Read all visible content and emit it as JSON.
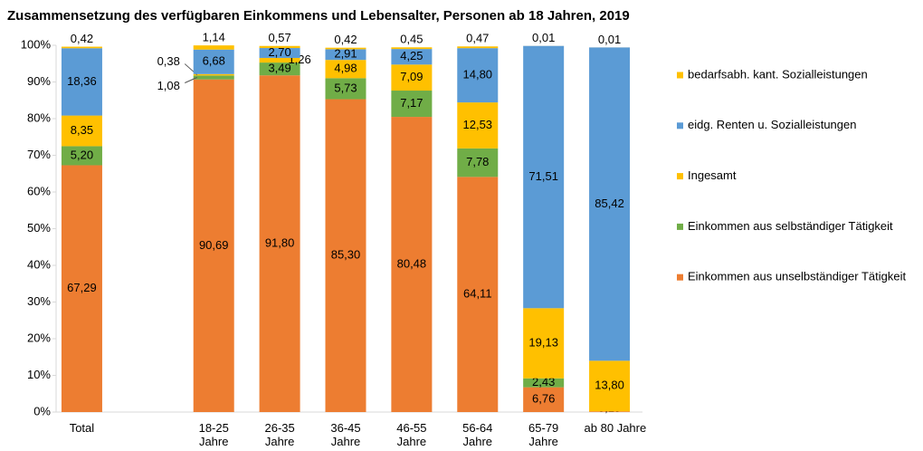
{
  "chart_data": {
    "type": "stacked_bar",
    "title": "Zusammensetzung des verfügbaren Einkommens und Lebensalter, Personen ab 18 Jahren, 2019",
    "categories": [
      "Total",
      null,
      "18-25 Jahre",
      "26-35 Jahre",
      "36-45 Jahre",
      "46-55 Jahre",
      "56-64 Jahre",
      "65-79 Jahre",
      "ab 80 Jahre"
    ],
    "series": [
      {
        "name": "Einkommen aus unselbständiger Tätigkeit",
        "color": "#ed7d31",
        "values": [
          67.29,
          null,
          90.69,
          91.8,
          85.3,
          80.48,
          64.11,
          6.76,
          0.19
        ],
        "value_labels": [
          "67,29",
          null,
          "90,69",
          "91,80",
          "85,30",
          "80,48",
          "64,11",
          "6,76",
          "0,19"
        ]
      },
      {
        "name": "Einkommen aus selbständiger Tätigkeit",
        "color": "#70ad47",
        "values": [
          5.2,
          null,
          1.08,
          3.49,
          5.73,
          7.17,
          7.78,
          2.43,
          null
        ],
        "value_labels": [
          "5,20",
          null,
          "1,08",
          "3,49",
          "5,73",
          "7,17",
          "7,78",
          "2,43",
          null
        ]
      },
      {
        "name": "Ingesamt",
        "color": "#ffc000",
        "values": [
          8.35,
          null,
          0.38,
          1.26,
          4.98,
          7.09,
          12.53,
          19.13,
          13.8
        ],
        "value_labels": [
          "8,35",
          null,
          "0,38",
          "1,26",
          "4,98",
          "7,09",
          "12,53",
          "19,13",
          "13,80"
        ]
      },
      {
        "name": "eidg. Renten u. Sozialleistungen",
        "color": "#5b9bd5",
        "values": [
          18.36,
          null,
          6.68,
          2.7,
          2.91,
          4.25,
          14.8,
          71.51,
          85.42
        ],
        "value_labels": [
          "18,36",
          null,
          "6,68",
          "2,70",
          "2,91",
          "4,25",
          "14,80",
          "71,51",
          "85,42"
        ]
      },
      {
        "name": "bedarfsabh. kant. Sozialleistungen",
        "color": "#ffc000",
        "values": [
          0.42,
          null,
          1.14,
          0.57,
          0.42,
          0.45,
          0.47,
          0.01,
          0.01
        ],
        "value_labels": [
          "0,42",
          null,
          "1,14",
          "0,57",
          "0,42",
          "0,45",
          "0,47",
          "0,01",
          "0,01"
        ]
      }
    ],
    "ylim": [
      0,
      100
    ],
    "yticks": [
      {
        "value": 0,
        "label": "0%"
      },
      {
        "value": 10,
        "label": "10%"
      },
      {
        "value": 20,
        "label": "20%"
      },
      {
        "value": 30,
        "label": "30%"
      },
      {
        "value": 40,
        "label": "40%"
      },
      {
        "value": 50,
        "label": "50%"
      },
      {
        "value": 60,
        "label": "60%"
      },
      {
        "value": 70,
        "label": "70%"
      },
      {
        "value": 80,
        "label": "80%"
      },
      {
        "value": 90,
        "label": "90%"
      },
      {
        "value": 100,
        "label": "100%"
      }
    ],
    "grid": false,
    "legend": "right"
  }
}
